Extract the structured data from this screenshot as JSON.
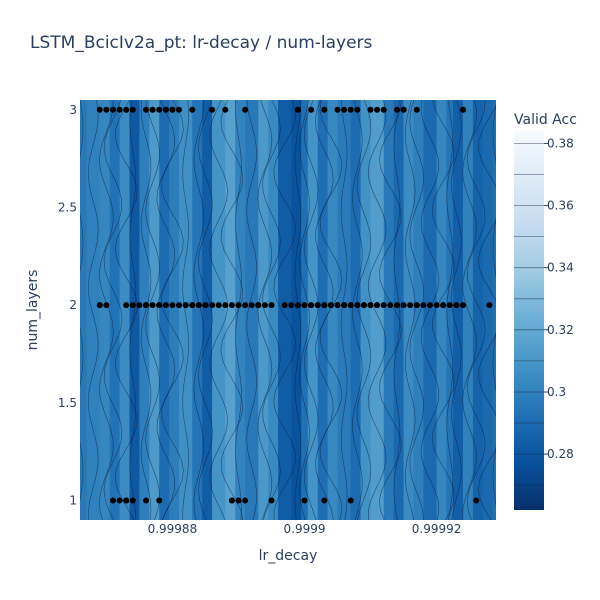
{
  "chart_data": {
    "type": "contour",
    "title": "LSTM_BcicIv2a_pt: lr-decay / num-layers",
    "xlabel": "lr_decay",
    "ylabel": "num_layers",
    "xlim": [
      0.999866,
      0.999929
    ],
    "ylim": [
      0.9,
      3.05
    ],
    "x_ticks": [
      {
        "value": 0.99988,
        "label": "0.99988"
      },
      {
        "value": 0.9999,
        "label": "0.9999"
      },
      {
        "value": 0.99992,
        "label": "0.99992"
      }
    ],
    "y_ticks": [
      {
        "value": 1,
        "label": "1"
      },
      {
        "value": 1.5,
        "label": "1.5"
      },
      {
        "value": 2,
        "label": "2"
      },
      {
        "value": 2.5,
        "label": "2.5"
      },
      {
        "value": 3,
        "label": "3"
      }
    ],
    "colorbar": {
      "title": "Valid Acc",
      "range": [
        0.262,
        0.384
      ],
      "ticks": [
        {
          "value": 0.28,
          "label": "0.28"
        },
        {
          "value": 0.3,
          "label": "0.3"
        },
        {
          "value": 0.32,
          "label": "0.32"
        },
        {
          "value": 0.34,
          "label": "0.34"
        },
        {
          "value": 0.36,
          "label": "0.36"
        },
        {
          "value": 0.38,
          "label": "0.38"
        }
      ],
      "colorscale": "Blues (dark = low, light = high)"
    },
    "contour_columns": {
      "x": [
        0.999866,
        0.999868,
        0.99987,
        0.999871,
        0.999873,
        0.999874,
        0.999876,
        0.999877,
        0.999879,
        0.99988,
        0.999882,
        0.999884,
        0.999885,
        0.999887,
        0.999889,
        0.99989,
        0.999892,
        0.999894,
        0.999895,
        0.999897,
        0.999899,
        0.9999,
        0.999901,
        0.999903,
        0.999904,
        0.999906,
        0.999908,
        0.999909,
        0.999911,
        0.999913,
        0.999914,
        0.999916,
        0.999917,
        0.999919,
        0.999921,
        0.999922,
        0.999923,
        0.999925,
        0.999926,
        0.999928,
        0.999929
      ],
      "value": [
        0.296,
        0.3,
        0.302,
        0.293,
        0.305,
        0.281,
        0.299,
        0.312,
        0.29,
        0.298,
        0.307,
        0.294,
        0.283,
        0.309,
        0.316,
        0.301,
        0.296,
        0.311,
        0.304,
        0.283,
        0.278,
        0.292,
        0.309,
        0.291,
        0.303,
        0.297,
        0.29,
        0.308,
        0.314,
        0.296,
        0.288,
        0.305,
        0.299,
        0.289,
        0.302,
        0.294,
        0.284,
        0.3,
        0.286,
        0.289,
        0.292
      ]
    },
    "points": [
      {
        "y": 3,
        "x": [
          0.999869,
          0.99987,
          0.999871,
          0.999872,
          0.999873,
          0.999874,
          0.999876,
          0.999877,
          0.999877,
          0.999878,
          0.999879,
          0.999879,
          0.99988,
          0.99988,
          0.999881,
          0.999883,
          0.999886,
          0.999888,
          0.999891,
          0.999899,
          0.999899,
          0.999901,
          0.999903,
          0.999905,
          0.999906,
          0.999907,
          0.999908,
          0.99991,
          0.999911,
          0.999912,
          0.999914,
          0.999915,
          0.999915,
          0.999917,
          0.999924,
          0.999924
        ]
      },
      {
        "y": 2,
        "x": [
          0.999869,
          0.999869,
          0.99987,
          0.999873,
          0.999874,
          0.999875,
          0.999876,
          0.999876,
          0.999877,
          0.999878,
          0.999878,
          0.999879,
          0.99988,
          0.999881,
          0.999882,
          0.999882,
          0.999883,
          0.999883,
          0.999884,
          0.999884,
          0.999885,
          0.999885,
          0.999886,
          0.999887,
          0.999888,
          0.999889,
          0.99989,
          0.999891,
          0.999892,
          0.999893,
          0.999893,
          0.999894,
          0.999895,
          0.999897,
          0.999898,
          0.999899,
          0.9999,
          0.999901,
          0.999901,
          0.999902,
          0.999902,
          0.999903,
          0.999903,
          0.999904,
          0.999904,
          0.999905,
          0.999905,
          0.999906,
          0.999906,
          0.999907,
          0.999907,
          0.999908,
          0.999908,
          0.999909,
          0.999909,
          0.99991,
          0.99991,
          0.999911,
          0.999911,
          0.999912,
          0.999913,
          0.999914,
          0.999914,
          0.999915,
          0.999916,
          0.999917,
          0.999917,
          0.999918,
          0.999919,
          0.99992,
          0.999921,
          0.999921,
          0.999922,
          0.999923,
          0.999923,
          0.999924,
          0.999928
        ]
      },
      {
        "y": 1,
        "x": [
          0.999871,
          0.999872,
          0.999873,
          0.999873,
          0.999874,
          0.999876,
          0.999878,
          0.999889,
          0.999889,
          0.99989,
          0.999891,
          0.999895,
          0.9999,
          0.999903,
          0.999907,
          0.999926
        ]
      }
    ]
  }
}
